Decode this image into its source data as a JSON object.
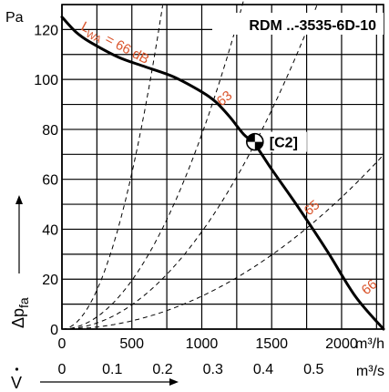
{
  "chart_data": {
    "type": "line",
    "model": "RDM ..-3535-6D-10",
    "y_unit": "Pa",
    "y_label_main": "Δp",
    "y_label_sub": "fa",
    "x_label": "V",
    "x_units": [
      "m³/h",
      "m³/s"
    ],
    "x_primary_ticks": [
      "0",
      "500",
      "1000",
      "1500",
      "2000"
    ],
    "x_secondary_ticks": [
      "0",
      "0.1",
      "0.2",
      "0.3",
      "0.4",
      "0.5"
    ],
    "y_ticks": [
      "0",
      "20",
      "40",
      "60",
      "80",
      "100",
      "120"
    ],
    "xlim": [
      0,
      2300
    ],
    "ylim": [
      0,
      130
    ],
    "grid": true,
    "fan_curve": {
      "x": [
        0,
        100,
        200,
        400,
        600,
        800,
        1000,
        1100,
        1200,
        1300,
        1380,
        1500,
        1700,
        1900,
        2100,
        2300
      ],
      "y": [
        125,
        119,
        115,
        109,
        105,
        101,
        95,
        91,
        85,
        78,
        74,
        64,
        48,
        31,
        13,
        0
      ]
    },
    "system_curves": [
      {
        "k": 0.00025
      },
      {
        "k": 7.8e-05
      },
      {
        "k": 3.9e-05
      },
      {
        "k": 1.32e-05
      }
    ],
    "sound_labels": [
      {
        "text": "L",
        "sub": "WA",
        "rest": " = 66 dB"
      },
      {
        "text": "63"
      },
      {
        "text": "65"
      },
      {
        "text": "66"
      }
    ],
    "operating_point": {
      "x": 1380,
      "y": 75,
      "label": "[C2]"
    },
    "colors": {
      "curve": "#000000",
      "noise": "#d9542b",
      "grid": "#000000"
    }
  }
}
